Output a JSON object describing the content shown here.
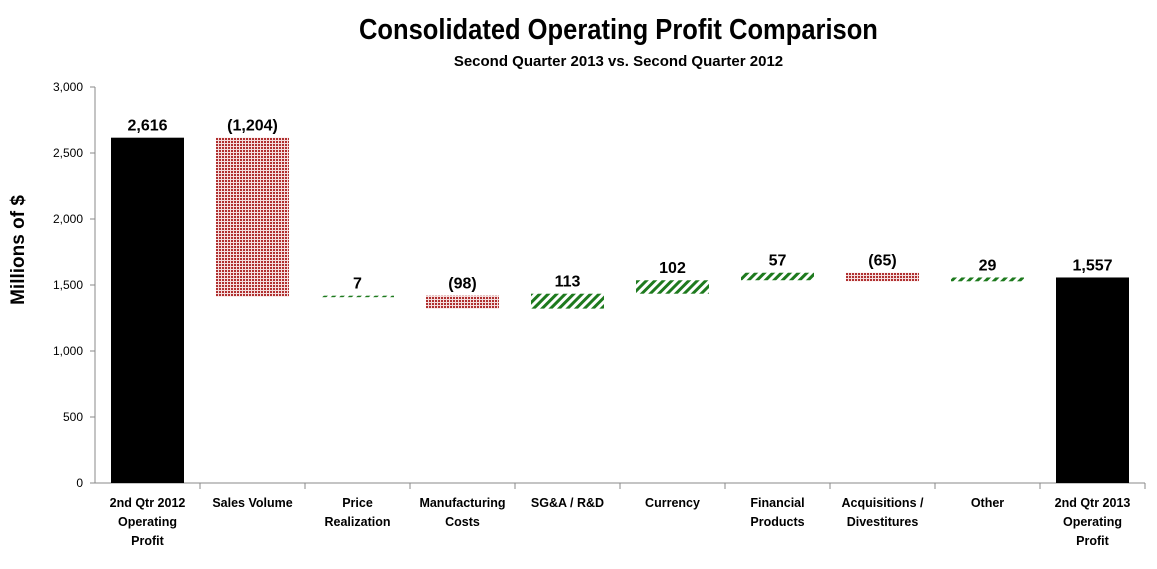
{
  "chart_data": {
    "type": "waterfall",
    "title": "Consolidated Operating Profit Comparison",
    "subtitle": "Second Quarter 2013 vs. Second Quarter 2012",
    "ylabel": "Millions  of $",
    "xlabel": "",
    "ylim": [
      0,
      3000
    ],
    "yticks": [
      0,
      500,
      1000,
      1500,
      2000,
      2500,
      3000
    ],
    "ytick_labels": [
      "0",
      "500",
      "1,000",
      "1,500",
      "2,000",
      "2,500",
      "3,000"
    ],
    "categories": [
      [
        "2nd Qtr 2012",
        "Operating",
        "Profit"
      ],
      [
        "Sales Volume"
      ],
      [
        "Price",
        "Realization"
      ],
      [
        "Manufacturing",
        "Costs"
      ],
      [
        "SG&A / R&D"
      ],
      [
        "Currency"
      ],
      [
        "Financial",
        "Products"
      ],
      [
        "Acquisitions /",
        "Divestitures"
      ],
      [
        "Other"
      ],
      [
        "2nd Qtr 2013",
        "Operating",
        "Profit"
      ]
    ],
    "values": [
      2616,
      -1204,
      7,
      -98,
      113,
      102,
      57,
      -65,
      29,
      1557
    ],
    "kinds": [
      "total",
      "delta",
      "delta",
      "delta",
      "delta",
      "delta",
      "delta",
      "delta",
      "delta",
      "total"
    ],
    "data_labels": [
      "2,616",
      "(1,204)",
      "7",
      "(98)",
      "113",
      "102",
      "57",
      "(65)",
      "29",
      "1,557"
    ],
    "colors": {
      "total": "#000000",
      "increase": "#1e7a1e",
      "decrease": "#b03030"
    },
    "grid": false,
    "legend": "none"
  }
}
